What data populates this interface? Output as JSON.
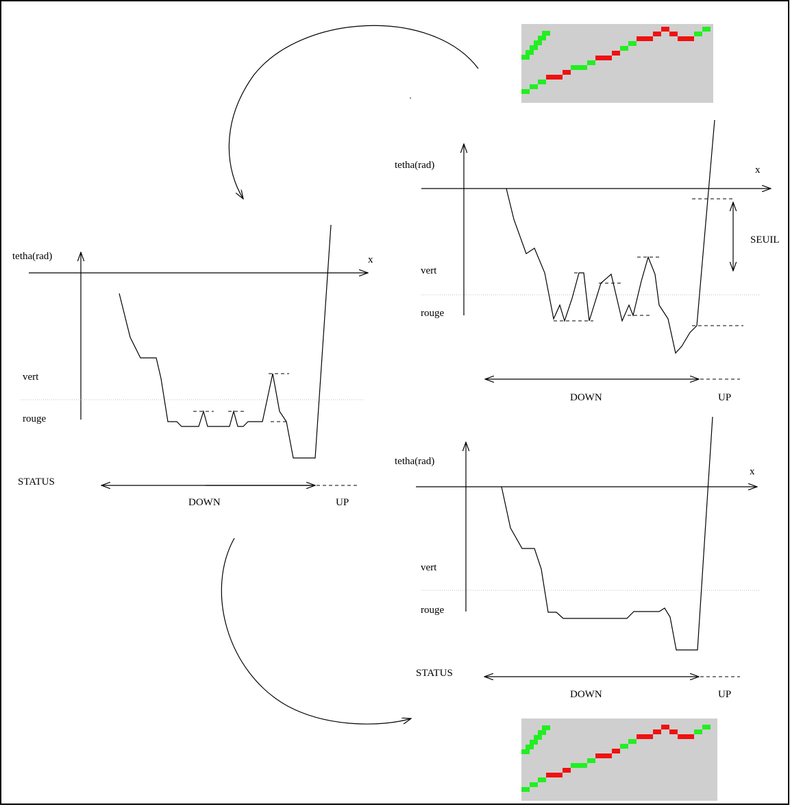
{
  "panels": [
    {
      "y_label": "tetha(rad)",
      "x_label": "x",
      "levels": [
        "vert",
        "rouge"
      ],
      "status": "STATUS",
      "states": [
        "DOWN",
        "UP"
      ]
    },
    {
      "y_label": "tetha(rad)",
      "x_label": "x",
      "levels": [
        "vert",
        "rouge"
      ],
      "threshold": "SEUIL",
      "states": [
        "DOWN",
        "UP"
      ]
    },
    {
      "y_label": "tetha(rad)",
      "x_label": "x",
      "levels": [
        "vert",
        "rouge"
      ],
      "status": "STATUS",
      "states": [
        "DOWN",
        "UP"
      ]
    }
  ]
}
